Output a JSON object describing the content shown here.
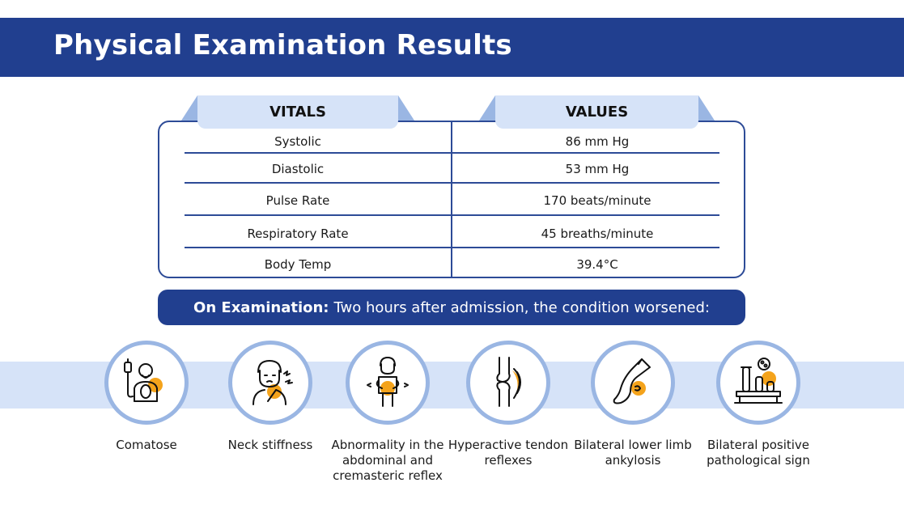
{
  "header": {
    "title": "Physical Examination Results"
  },
  "table": {
    "col_headers": [
      "VITALS",
      "VALUES"
    ],
    "rows": [
      {
        "vital": "Systolic",
        "value": "86 mm Hg"
      },
      {
        "vital": "Diastolic",
        "value": "53 mm Hg"
      },
      {
        "vital": "Pulse Rate",
        "value": "170 beats/minute"
      },
      {
        "vital": "Respiratory Rate",
        "value": "45 breaths/minute"
      },
      {
        "vital": "Body Temp",
        "value": "39.4°C"
      }
    ]
  },
  "exam": {
    "label": "On Examination:",
    "text": "Two hours after admission, the condition worsened:"
  },
  "findings": [
    {
      "label": "Comatose",
      "icon": "comatose-patient-icon"
    },
    {
      "label": "Neck stiffness",
      "icon": "neck-stiffness-icon"
    },
    {
      "label": "Abnormality in the abdominal and cremasteric reflex",
      "icon": "abdominal-pain-icon"
    },
    {
      "label": "Hyperactive tendon reflexes",
      "icon": "knee-joint-icon"
    },
    {
      "label": "Bilateral lower limb ankylosis",
      "icon": "leg-ankylosis-icon"
    },
    {
      "label": "Bilateral positive pathological sign",
      "icon": "lab-test-icon"
    }
  ],
  "colors": {
    "primary": "#213f8f",
    "light": "#d6e3f8",
    "ring": "#9ab6e3",
    "accent": "#f4a31b"
  }
}
